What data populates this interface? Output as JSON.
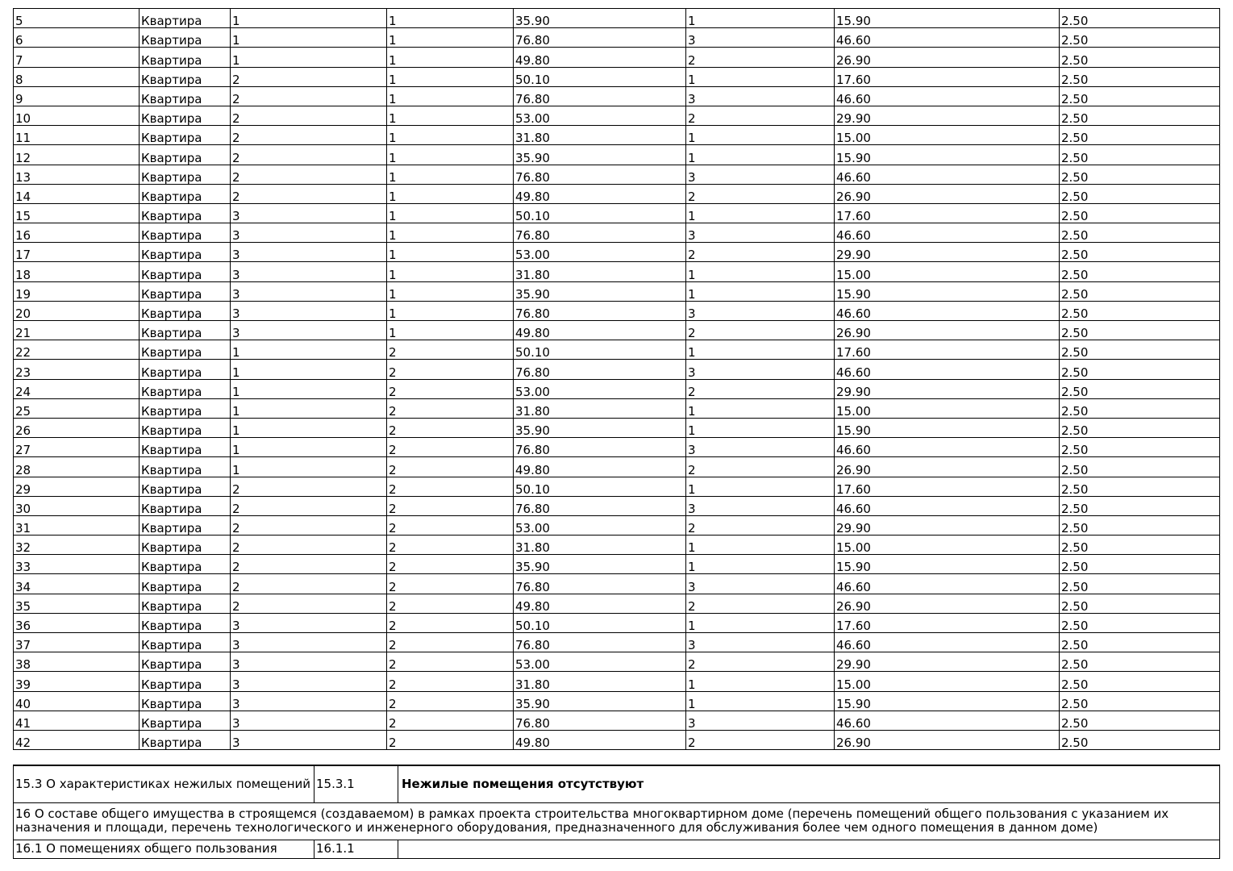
{
  "rows": [
    [
      "5",
      "Квартира",
      "1",
      "1",
      "35.90",
      "1",
      "15.90",
      "2.50"
    ],
    [
      "6",
      "Квартира",
      "1",
      "1",
      "76.80",
      "3",
      "46.60",
      "2.50"
    ],
    [
      "7",
      "Квартира",
      "1",
      "1",
      "49.80",
      "2",
      "26.90",
      "2.50"
    ],
    [
      "8",
      "Квартира",
      "2",
      "1",
      "50.10",
      "1",
      "17.60",
      "2.50"
    ],
    [
      "9",
      "Квартира",
      "2",
      "1",
      "76.80",
      "3",
      "46.60",
      "2.50"
    ],
    [
      "10",
      "Квартира",
      "2",
      "1",
      "53.00",
      "2",
      "29.90",
      "2.50"
    ],
    [
      "11",
      "Квартира",
      "2",
      "1",
      "31.80",
      "1",
      "15.00",
      "2.50"
    ],
    [
      "12",
      "Квартира",
      "2",
      "1",
      "35.90",
      "1",
      "15.90",
      "2.50"
    ],
    [
      "13",
      "Квартира",
      "2",
      "1",
      "76.80",
      "3",
      "46.60",
      "2.50"
    ],
    [
      "14",
      "Квартира",
      "2",
      "1",
      "49.80",
      "2",
      "26.90",
      "2.50"
    ],
    [
      "15",
      "Квартира",
      "3",
      "1",
      "50.10",
      "1",
      "17.60",
      "2.50"
    ],
    [
      "16",
      "Квартира",
      "3",
      "1",
      "76.80",
      "3",
      "46.60",
      "2.50"
    ],
    [
      "17",
      "Квартира",
      "3",
      "1",
      "53.00",
      "2",
      "29.90",
      "2.50"
    ],
    [
      "18",
      "Квартира",
      "3",
      "1",
      "31.80",
      "1",
      "15.00",
      "2.50"
    ],
    [
      "19",
      "Квартира",
      "3",
      "1",
      "35.90",
      "1",
      "15.90",
      "2.50"
    ],
    [
      "20",
      "Квартира",
      "3",
      "1",
      "76.80",
      "3",
      "46.60",
      "2.50"
    ],
    [
      "21",
      "Квартира",
      "3",
      "1",
      "49.80",
      "2",
      "26.90",
      "2.50"
    ],
    [
      "22",
      "Квартира",
      "1",
      "2",
      "50.10",
      "1",
      "17.60",
      "2.50"
    ],
    [
      "23",
      "Квартира",
      "1",
      "2",
      "76.80",
      "3",
      "46.60",
      "2.50"
    ],
    [
      "24",
      "Квартира",
      "1",
      "2",
      "53.00",
      "2",
      "29.90",
      "2.50"
    ],
    [
      "25",
      "Квартира",
      "1",
      "2",
      "31.80",
      "1",
      "15.00",
      "2.50"
    ],
    [
      "26",
      "Квартира",
      "1",
      "2",
      "35.90",
      "1",
      "15.90",
      "2.50"
    ],
    [
      "27",
      "Квартира",
      "1",
      "2",
      "76.80",
      "3",
      "46.60",
      "2.50"
    ],
    [
      "28",
      "Квартира",
      "1",
      "2",
      "49.80",
      "2",
      "26.90",
      "2.50"
    ],
    [
      "29",
      "Квартира",
      "2",
      "2",
      "50.10",
      "1",
      "17.60",
      "2.50"
    ],
    [
      "30",
      "Квартира",
      "2",
      "2",
      "76.80",
      "3",
      "46.60",
      "2.50"
    ],
    [
      "31",
      "Квартира",
      "2",
      "2",
      "53.00",
      "2",
      "29.90",
      "2.50"
    ],
    [
      "32",
      "Квартира",
      "2",
      "2",
      "31.80",
      "1",
      "15.00",
      "2.50"
    ],
    [
      "33",
      "Квартира",
      "2",
      "2",
      "35.90",
      "1",
      "15.90",
      "2.50"
    ],
    [
      "34",
      "Квартира",
      "2",
      "2",
      "76.80",
      "3",
      "46.60",
      "2.50"
    ],
    [
      "35",
      "Квартира",
      "2",
      "2",
      "49.80",
      "2",
      "26.90",
      "2.50"
    ],
    [
      "36",
      "Квартира",
      "3",
      "2",
      "50.10",
      "1",
      "17.60",
      "2.50"
    ],
    [
      "37",
      "Квартира",
      "3",
      "2",
      "76.80",
      "3",
      "46.60",
      "2.50"
    ],
    [
      "38",
      "Квартира",
      "3",
      "2",
      "53.00",
      "2",
      "29.90",
      "2.50"
    ],
    [
      "39",
      "Квартира",
      "3",
      "2",
      "31.80",
      "1",
      "15.00",
      "2.50"
    ],
    [
      "40",
      "Квартира",
      "3",
      "2",
      "35.90",
      "1",
      "15.90",
      "2.50"
    ],
    [
      "41",
      "Квартира",
      "3",
      "2",
      "76.80",
      "3",
      "46.60",
      "2.50"
    ],
    [
      "42",
      "Квартира",
      "3",
      "2",
      "49.80",
      "2",
      "26.90",
      "2.50"
    ]
  ],
  "section_15_3": {
    "label": "15.3 О характеристиках нежилых помещений",
    "code": "15.3.1",
    "value": "Нежилые помещения отсутствуют"
  },
  "section_16": {
    "text": "16 О составе общего имущества в строящемся (создаваемом) в рамках проекта строительства многоквартирном доме (перечень помещений общего пользования с указанием их назначения и площади, перечень технологического и инженерного оборудования, предназначенного для обслуживания более чем одного помещения в данном доме)"
  },
  "section_16_1": {
    "label": "16.1 О помещениях общего пользования",
    "code": "16.1.1",
    "value": ""
  }
}
